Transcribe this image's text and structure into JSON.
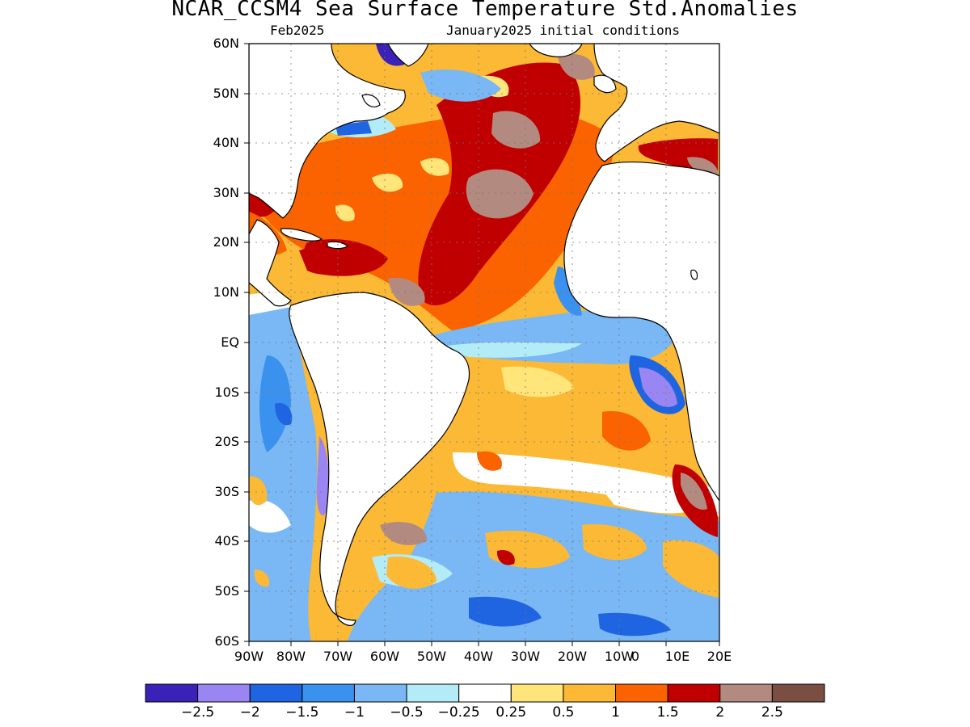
{
  "title": "NCAR_CCSM4 Sea Surface Temperature Std.Anomalies",
  "subtitle_left": "Feb2025",
  "subtitle_right": "January2025 initial conditions",
  "lat_labels": [
    "60N",
    "50N",
    "40N",
    "30N",
    "20N",
    "10N",
    "EQ",
    "10S",
    "20S",
    "30S",
    "40S",
    "50S",
    "60S"
  ],
  "lon_labels": [
    "90W",
    "80W",
    "70W",
    "60W",
    "50W",
    "40W",
    "30W",
    "20W",
    "10W",
    "0",
    "10E",
    "20E"
  ],
  "colorbar": {
    "colors": [
      "#3a22b8",
      "#9a86f2",
      "#1f64e0",
      "#3b91ee",
      "#79b7f5",
      "#b3ecf7",
      "#ffffff",
      "#ffe57a",
      "#fbb935",
      "#fa6300",
      "#c00000",
      "#b38a80",
      "#7a4f42"
    ],
    "labels": [
      "−2.5",
      "−2",
      "−1.5",
      "−1",
      "−0.5",
      "−0.25",
      "0.25",
      "0.5",
      "1",
      "1.5",
      "2",
      "2.5"
    ]
  }
}
